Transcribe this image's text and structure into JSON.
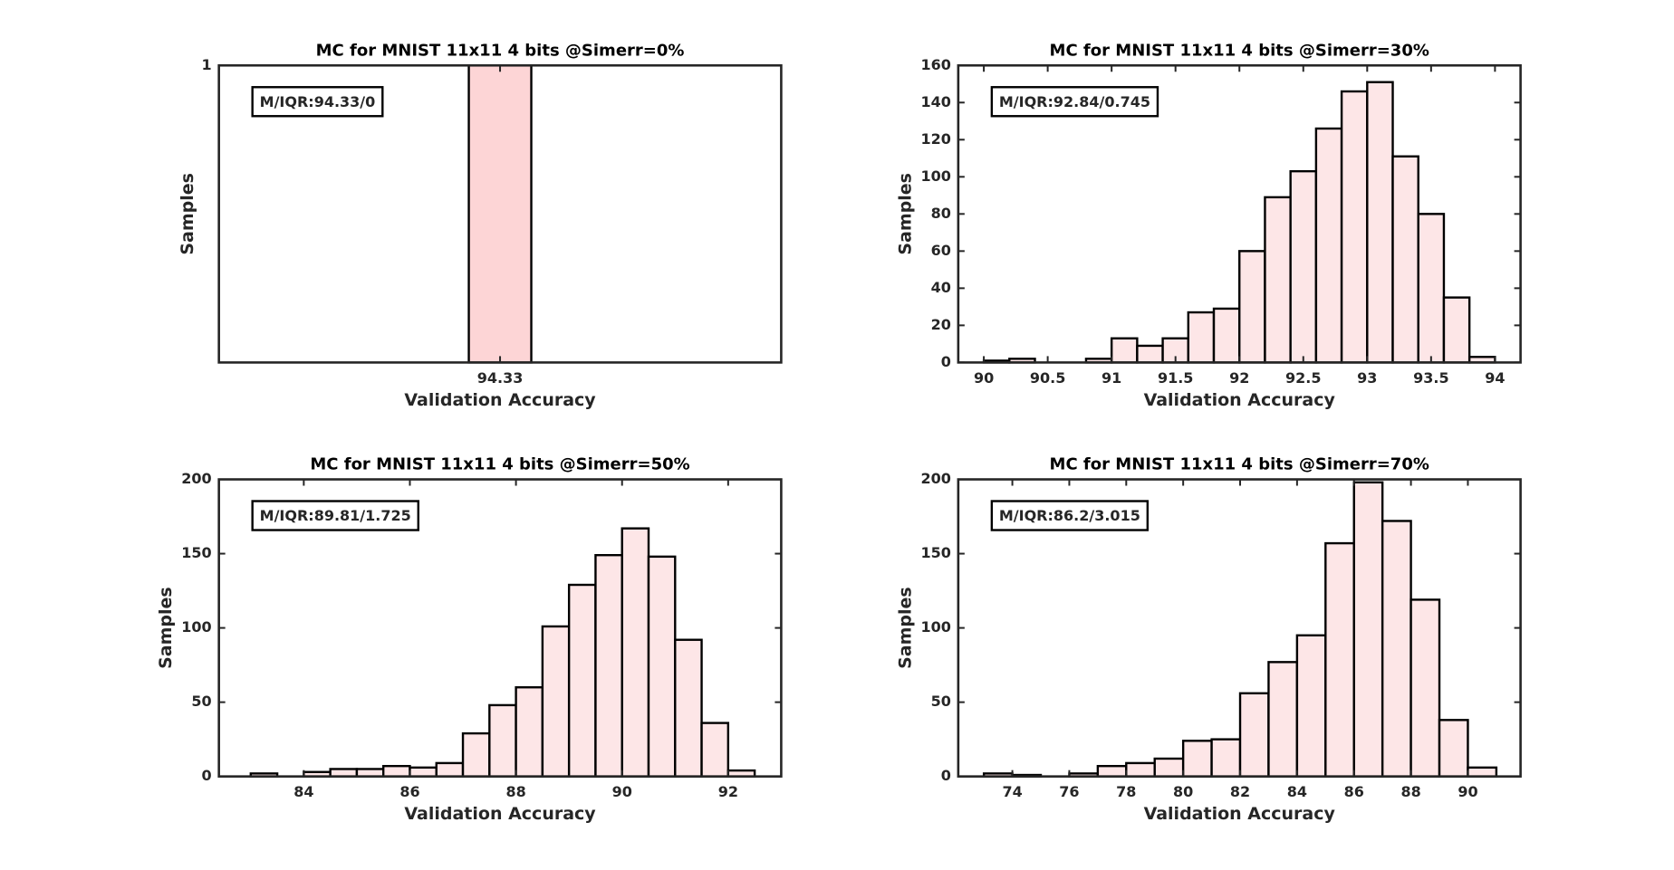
{
  "chart_data": [
    {
      "type": "histogram",
      "title": "MC for MNIST 11x11 4 bits @Simerr=0%",
      "xlabel": "Validation Accuracy",
      "ylabel": "Samples",
      "annotation": "M/IQR:94.33/0",
      "color": "#fdd5d6",
      "bins": [
        94.3,
        94.36
      ],
      "values": [
        1
      ],
      "xlim": [
        94.06,
        94.6
      ],
      "xticks": [
        94.33
      ],
      "ylim": [
        0,
        1
      ],
      "yticks": [
        1
      ]
    },
    {
      "type": "histogram",
      "title": "MC for MNIST 11x11 4 bits @Simerr=30%",
      "xlabel": "Validation Accuracy",
      "ylabel": "Samples",
      "annotation": "M/IQR:92.84/0.745",
      "color": "#fde6e7",
      "bins": [
        90.0,
        90.2,
        90.4,
        90.6,
        90.8,
        91.0,
        91.2,
        91.4,
        91.6,
        91.8,
        92.0,
        92.2,
        92.4,
        92.6,
        92.8,
        93.0,
        93.2,
        93.4,
        93.6,
        93.8,
        94.0
      ],
      "values": [
        1,
        2,
        0,
        0,
        2,
        13,
        9,
        13,
        27,
        29,
        60,
        89,
        103,
        126,
        146,
        151,
        111,
        80,
        35,
        3
      ],
      "xlim": [
        89.8,
        94.2
      ],
      "xticks": [
        90,
        90.5,
        91,
        91.5,
        92,
        92.5,
        93,
        93.5,
        94
      ],
      "ylim": [
        0,
        160
      ],
      "yticks": [
        0,
        20,
        40,
        60,
        80,
        100,
        120,
        140,
        160
      ]
    },
    {
      "type": "histogram",
      "title": "MC for MNIST 11x11 4 bits @Simerr=50%",
      "xlabel": "Validation Accuracy",
      "ylabel": "Samples",
      "annotation": "M/IQR:89.81/1.725",
      "color": "#fde6e7",
      "bins": [
        83.0,
        83.5,
        84.0,
        84.5,
        85.0,
        85.5,
        86.0,
        86.5,
        87.0,
        87.5,
        88.0,
        88.5,
        89.0,
        89.5,
        90.0,
        90.5,
        91.0,
        91.5,
        92.0,
        92.5
      ],
      "values": [
        2,
        0,
        3,
        5,
        5,
        7,
        6,
        9,
        29,
        48,
        60,
        101,
        129,
        149,
        167,
        148,
        92,
        36,
        4
      ],
      "xlim": [
        82.4,
        93
      ],
      "xticks": [
        84,
        86,
        88,
        90,
        92
      ],
      "ylim": [
        0,
        200
      ],
      "yticks": [
        0,
        50,
        100,
        150,
        200
      ]
    },
    {
      "type": "histogram",
      "title": "MC for MNIST 11x11 4 bits @Simerr=70%",
      "xlabel": "Validation Accuracy",
      "ylabel": "Samples",
      "annotation": "M/IQR:86.2/3.015",
      "color": "#fde6e7",
      "bins": [
        73,
        74,
        75,
        76,
        77,
        78,
        79,
        80,
        81,
        82,
        83,
        84,
        85,
        86,
        87,
        88,
        89,
        90,
        91
      ],
      "values": [
        2,
        1,
        0,
        2,
        7,
        9,
        12,
        24,
        25,
        56,
        77,
        95,
        157,
        198,
        172,
        119,
        38,
        6
      ],
      "xlim": [
        72.1,
        91.85
      ],
      "xticks": [
        74,
        76,
        78,
        80,
        82,
        84,
        86,
        88,
        90
      ],
      "ylim": [
        0,
        200
      ],
      "yticks": [
        0,
        50,
        100,
        150,
        200
      ]
    }
  ]
}
